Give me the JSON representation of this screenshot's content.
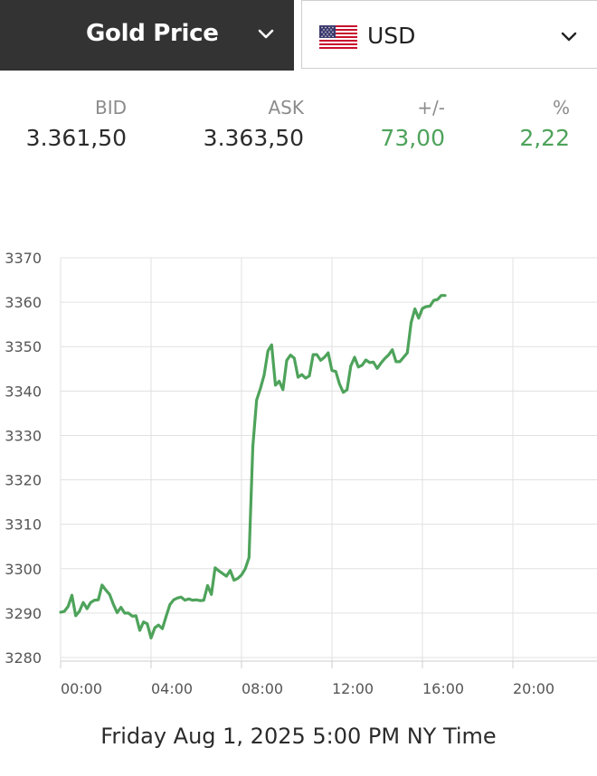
{
  "header": {
    "metal_label": "Gold Price",
    "currency_label": "USD",
    "metal_chevron_icon": "chevron-down-icon",
    "currency_chevron_icon": "chevron-down-icon",
    "flag_icon": "us-flag-icon"
  },
  "quote": {
    "bid_label": "BID",
    "bid_value": "3.361,50",
    "ask_label": "ASK",
    "ask_value": "3.363,50",
    "change_label": "+/-",
    "change_value": "73,00",
    "percent_label": "%",
    "percent_value": "2,22",
    "positive_color": "#4ea35b"
  },
  "chart_data": {
    "type": "line",
    "title": "",
    "xlabel": "",
    "ylabel": "",
    "y_ticks": [
      3280,
      3290,
      3300,
      3310,
      3320,
      3330,
      3340,
      3350,
      3360,
      3370
    ],
    "ylim": [
      3278,
      3370
    ],
    "x_ticks": [
      "00:00",
      "04:00",
      "08:00",
      "12:00",
      "16:00",
      "20:00"
    ],
    "xlim": [
      "00:00",
      "24:00"
    ],
    "grid": true,
    "line_color": "#4ea35b",
    "series": [
      {
        "values": [
          [
            "00:00",
            3290.2
          ],
          [
            "00:10",
            3290.4
          ],
          [
            "00:20",
            3291.5
          ],
          [
            "00:30",
            3294.0
          ],
          [
            "00:40",
            3289.4
          ],
          [
            "00:50",
            3290.4
          ],
          [
            "01:00",
            3292.4
          ],
          [
            "01:10",
            3291.0
          ],
          [
            "01:20",
            3292.4
          ],
          [
            "01:30",
            3292.9
          ],
          [
            "01:40",
            3293.0
          ],
          [
            "01:50",
            3296.3
          ],
          [
            "02:00",
            3295.2
          ],
          [
            "02:10",
            3294.2
          ],
          [
            "02:20",
            3292.0
          ],
          [
            "02:30",
            3290.1
          ],
          [
            "02:40",
            3291.3
          ],
          [
            "02:50",
            3290.0
          ],
          [
            "03:00",
            3290.0
          ],
          [
            "03:10",
            3289.3
          ],
          [
            "03:20",
            3289.4
          ],
          [
            "03:30",
            3286.1
          ],
          [
            "03:40",
            3288.0
          ],
          [
            "03:50",
            3287.6
          ],
          [
            "04:00",
            3284.4
          ],
          [
            "04:10",
            3286.7
          ],
          [
            "04:20",
            3287.3
          ],
          [
            "04:30",
            3286.5
          ],
          [
            "04:40",
            3289.3
          ],
          [
            "04:50",
            3291.9
          ],
          [
            "05:00",
            3293.0
          ],
          [
            "05:10",
            3293.4
          ],
          [
            "05:20",
            3293.6
          ],
          [
            "05:30",
            3292.9
          ],
          [
            "05:40",
            3293.2
          ],
          [
            "05:50",
            3292.9
          ],
          [
            "06:00",
            3293.0
          ],
          [
            "06:10",
            3292.8
          ],
          [
            "06:20",
            3292.9
          ],
          [
            "06:30",
            3296.2
          ],
          [
            "06:40",
            3294.2
          ],
          [
            "06:50",
            3300.2
          ],
          [
            "07:00",
            3299.5
          ],
          [
            "07:10",
            3298.9
          ],
          [
            "07:20",
            3298.3
          ],
          [
            "07:30",
            3299.6
          ],
          [
            "07:40",
            3297.4
          ],
          [
            "07:50",
            3297.8
          ],
          [
            "08:00",
            3298.6
          ],
          [
            "08:10",
            3300.0
          ],
          [
            "08:20",
            3302.5
          ],
          [
            "08:30",
            3327.5
          ],
          [
            "08:40",
            3338.0
          ],
          [
            "08:50",
            3340.5
          ],
          [
            "09:00",
            3343.6
          ],
          [
            "09:10",
            3349.0
          ],
          [
            "09:20",
            3350.4
          ],
          [
            "09:30",
            3341.3
          ],
          [
            "09:40",
            3342.2
          ],
          [
            "09:50",
            3340.3
          ],
          [
            "10:00",
            3346.9
          ],
          [
            "10:10",
            3348.1
          ],
          [
            "10:20",
            3347.4
          ],
          [
            "10:30",
            3343.1
          ],
          [
            "10:40",
            3343.7
          ],
          [
            "10:50",
            3342.9
          ],
          [
            "11:00",
            3343.4
          ],
          [
            "11:10",
            3348.2
          ],
          [
            "11:20",
            3348.2
          ],
          [
            "11:30",
            3346.9
          ],
          [
            "11:40",
            3347.6
          ],
          [
            "11:50",
            3348.6
          ],
          [
            "12:00",
            3344.6
          ],
          [
            "12:10",
            3344.4
          ],
          [
            "12:20",
            3341.6
          ],
          [
            "12:30",
            3339.7
          ],
          [
            "12:40",
            3340.3
          ],
          [
            "12:50",
            3345.6
          ],
          [
            "13:00",
            3347.6
          ],
          [
            "13:10",
            3345.4
          ],
          [
            "13:20",
            3345.8
          ],
          [
            "13:30",
            3347.0
          ],
          [
            "13:40",
            3346.4
          ],
          [
            "13:50",
            3346.5
          ],
          [
            "14:00",
            3345.1
          ],
          [
            "14:10",
            3346.3
          ],
          [
            "14:20",
            3347.3
          ],
          [
            "14:30",
            3348.1
          ],
          [
            "14:40",
            3349.3
          ],
          [
            "14:50",
            3346.6
          ],
          [
            "15:00",
            3346.6
          ],
          [
            "15:10",
            3347.6
          ],
          [
            "15:20",
            3348.6
          ],
          [
            "15:30",
            3355.4
          ],
          [
            "15:40",
            3358.5
          ],
          [
            "15:50",
            3356.4
          ],
          [
            "16:00",
            3358.6
          ],
          [
            "16:10",
            3359.0
          ],
          [
            "16:20",
            3359.1
          ],
          [
            "16:30",
            3360.4
          ],
          [
            "16:40",
            3360.6
          ],
          [
            "16:50",
            3361.5
          ],
          [
            "17:00",
            3361.5
          ]
        ]
      }
    ]
  },
  "footer": {
    "timestamp": "Friday Aug 1, 2025 5:00 PM NY Time"
  }
}
